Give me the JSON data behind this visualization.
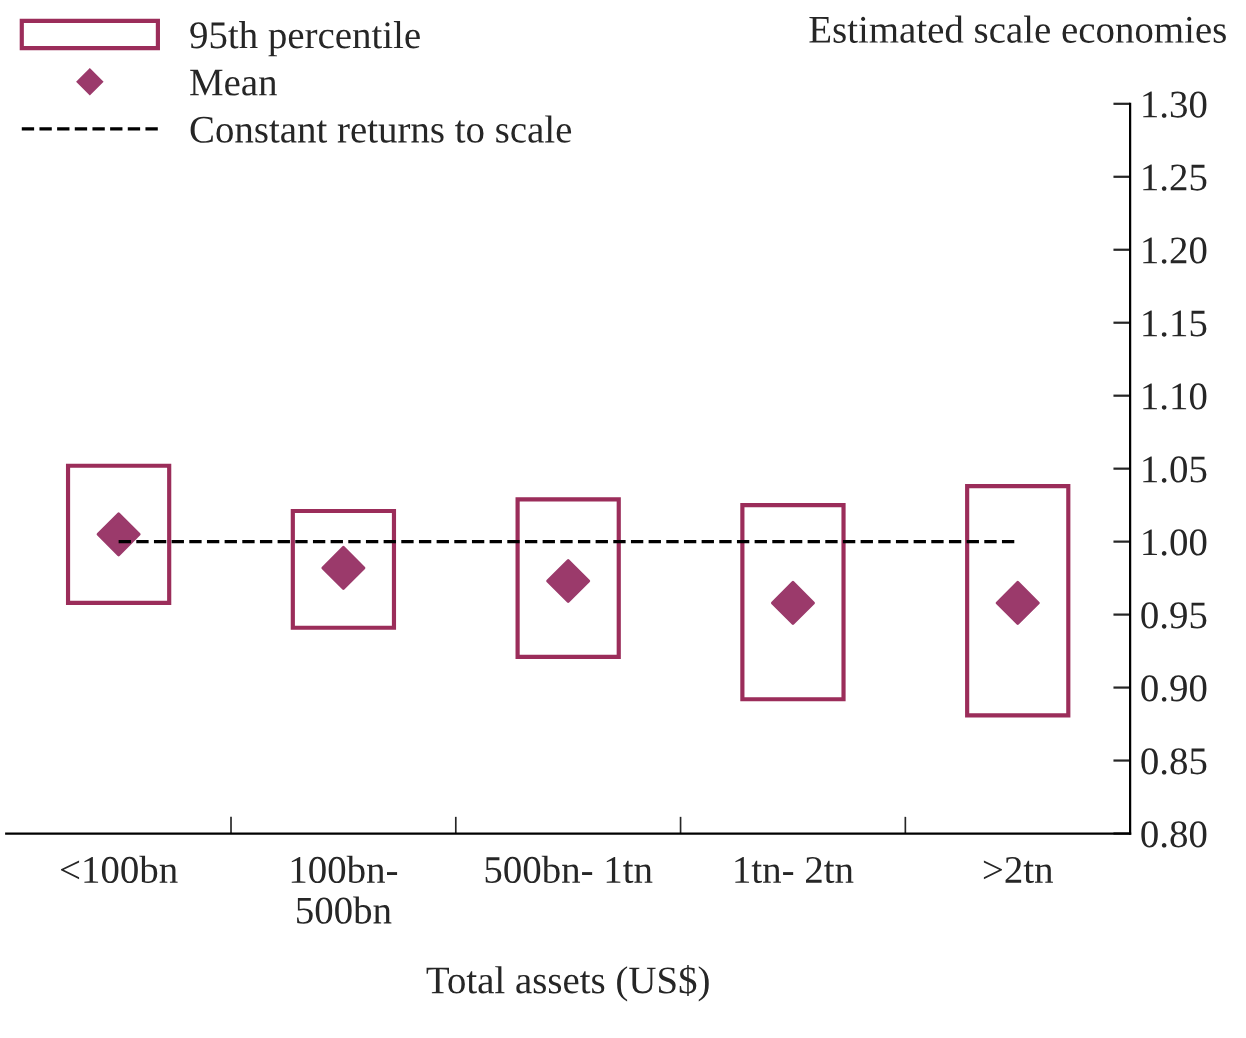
{
  "chart_data": {
    "type": "bar",
    "title": "Estimated scale economies",
    "xlabel": "Total assets (US$)",
    "categories": [
      "<100bn",
      "100bn-\n500bn",
      "500bn- 1tn",
      "1tn- 2tn",
      ">2tn"
    ],
    "series": [
      {
        "name": "95th percentile",
        "color": "#9b2d5a",
        "base": [
          0.958,
          0.941,
          0.921,
          0.892,
          0.881
        ],
        "values": [
          0.094,
          0.08,
          0.108,
          0.133,
          0.157
        ]
      },
      {
        "name": "Mean",
        "type": "scatter",
        "marker": "diamond",
        "color": "#9b3a6b",
        "values": [
          1.005,
          0.982,
          0.973,
          0.958,
          0.958
        ]
      },
      {
        "name": "Constant returns to scale",
        "type": "line",
        "line_style": "dashed",
        "color": "#000000",
        "values": [
          1.0,
          1.0,
          1.0,
          1.0,
          1.0
        ]
      }
    ],
    "ylim": [
      0.8,
      1.3
    ],
    "yticks": [
      {
        "value": 0.8,
        "label": "0.80"
      },
      {
        "value": 0.85,
        "label": "0.85"
      },
      {
        "value": 0.9,
        "label": "0.90"
      },
      {
        "value": 0.95,
        "label": "0.95"
      },
      {
        "value": 1.0,
        "label": "1.00"
      },
      {
        "value": 1.05,
        "label": "1.05"
      },
      {
        "value": 1.1,
        "label": "1.10"
      },
      {
        "value": 1.15,
        "label": "1.15"
      },
      {
        "value": 1.2,
        "label": "1.20"
      },
      {
        "value": 1.25,
        "label": "1.25"
      },
      {
        "value": 1.3,
        "label": "1.30"
      }
    ],
    "legend": "top left"
  }
}
